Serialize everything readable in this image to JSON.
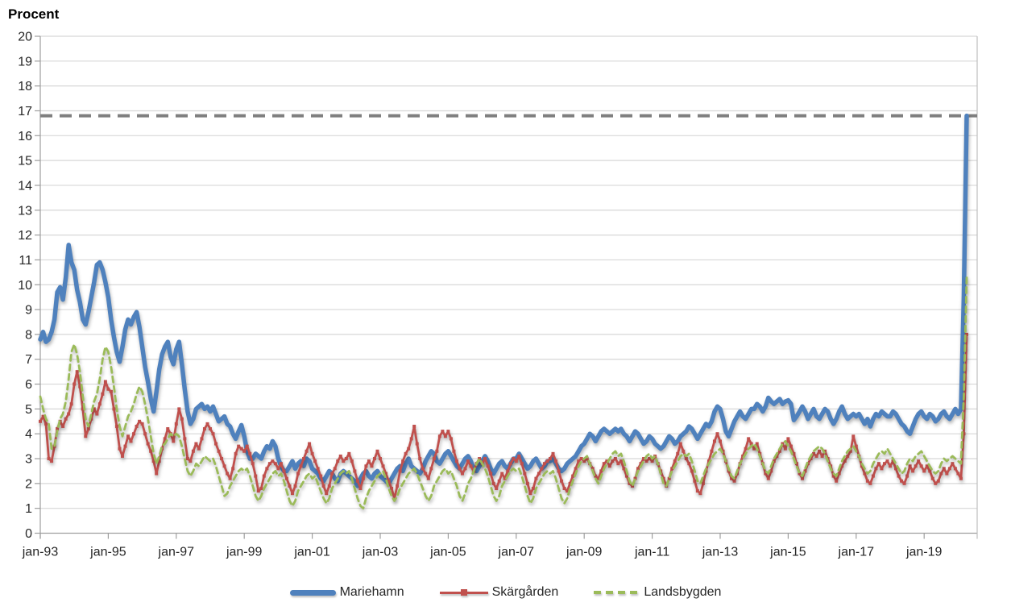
{
  "chart": {
    "y_axis_title": "Procent"
  },
  "chart_data": {
    "type": "line",
    "title": "Procent",
    "frequency": "monthly",
    "x_start": "jan-93",
    "x_end": "apr-20",
    "x_tick_labels": [
      "jan-93",
      "jan-95",
      "jan-97",
      "jan-99",
      "jan-01",
      "jan-03",
      "jan-05",
      "jan-07",
      "jan-09",
      "jan-11",
      "jan-13",
      "jan-15",
      "jan-17",
      "jan-19"
    ],
    "ylim": [
      0,
      20
    ],
    "y_tick_step": 1,
    "grid": "horizontal",
    "legend_position": "bottom",
    "reference_line": {
      "value": 16.8,
      "color": "#7F7F7F",
      "style": "dashed"
    },
    "axis_color": "#9E9E9E",
    "gridline_color": "#D7D7D7",
    "text_color": "#262626",
    "series": [
      {
        "name": "Mariehamn",
        "color": "#4F81BD",
        "line_style": "solid-thick",
        "values": [
          7.8,
          8.1,
          7.7,
          7.8,
          8.1,
          8.6,
          9.7,
          9.9,
          9.4,
          10.3,
          11.6,
          10.9,
          10.6,
          9.8,
          9.3,
          8.6,
          8.4,
          8.9,
          9.5,
          10.1,
          10.8,
          10.9,
          10.6,
          10.1,
          9.5,
          8.6,
          7.9,
          7.3,
          6.9,
          7.5,
          8.2,
          8.6,
          8.4,
          8.7,
          8.9,
          8.3,
          7.5,
          6.7,
          6.1,
          5.4,
          4.9,
          5.7,
          6.6,
          7.2,
          7.5,
          7.7,
          7.1,
          6.8,
          7.4,
          7.7,
          6.8,
          5.8,
          4.9,
          4.4,
          4.6,
          5.0,
          5.1,
          5.2,
          5.0,
          5.1,
          4.9,
          5.1,
          4.8,
          4.5,
          4.6,
          4.7,
          4.4,
          4.3,
          4.0,
          3.8,
          4.1,
          4.35,
          3.9,
          3.3,
          3.0,
          3.0,
          3.2,
          3.1,
          3.0,
          3.3,
          3.5,
          3.4,
          3.7,
          3.5,
          3.0,
          2.7,
          2.5,
          2.5,
          2.7,
          2.9,
          2.6,
          2.8,
          2.9,
          2.7,
          3.0,
          2.9,
          2.6,
          2.5,
          2.4,
          2.2,
          2.1,
          2.3,
          2.5,
          2.4,
          2.2,
          2.1,
          2.4,
          2.5,
          2.4,
          2.3,
          2.2,
          2.1,
          1.9,
          2.2,
          2.4,
          2.5,
          2.3,
          2.2,
          2.4,
          2.5,
          2.3,
          2.2,
          2.1,
          2.0,
          2.2,
          2.4,
          2.6,
          2.7,
          2.5,
          2.8,
          3.0,
          2.7,
          2.6,
          2.5,
          2.4,
          2.6,
          2.9,
          3.1,
          3.3,
          3.2,
          2.9,
          2.8,
          3.0,
          3.2,
          3.3,
          3.1,
          2.9,
          2.7,
          2.6,
          2.8,
          3.0,
          3.1,
          2.9,
          2.6,
          2.5,
          2.7,
          2.9,
          3.1,
          2.9,
          2.6,
          2.4,
          2.6,
          2.8,
          2.9,
          2.7,
          2.6,
          2.8,
          3.0,
          3.0,
          3.2,
          3.0,
          2.8,
          2.6,
          2.7,
          2.9,
          3.0,
          2.8,
          2.6,
          2.7,
          2.9,
          2.9,
          3.0,
          2.8,
          2.6,
          2.5,
          2.6,
          2.8,
          2.9,
          3.0,
          3.1,
          3.3,
          3.5,
          3.6,
          3.8,
          4.0,
          3.9,
          3.7,
          3.9,
          4.1,
          4.2,
          4.1,
          4.0,
          4.1,
          4.2,
          4.1,
          4.2,
          4.0,
          3.9,
          3.7,
          3.9,
          4.1,
          4.0,
          3.8,
          3.6,
          3.7,
          3.9,
          3.8,
          3.6,
          3.5,
          3.4,
          3.5,
          3.7,
          3.9,
          3.8,
          3.6,
          3.7,
          3.9,
          4.0,
          4.1,
          4.3,
          4.2,
          4.0,
          3.8,
          4.0,
          4.2,
          4.4,
          4.3,
          4.5,
          4.9,
          5.1,
          5.0,
          4.6,
          4.1,
          3.9,
          4.2,
          4.5,
          4.7,
          4.9,
          4.7,
          4.6,
          4.8,
          5.0,
          5.0,
          5.2,
          5.1,
          4.9,
          5.1,
          5.45,
          5.3,
          5.2,
          5.3,
          5.4,
          5.2,
          5.3,
          5.35,
          5.2,
          4.55,
          4.7,
          4.9,
          5.1,
          4.9,
          4.6,
          4.8,
          5.0,
          4.7,
          4.6,
          4.8,
          5.0,
          4.9,
          4.6,
          4.4,
          4.6,
          4.9,
          5.1,
          4.8,
          4.6,
          4.7,
          4.8,
          4.7,
          4.8,
          4.6,
          4.4,
          4.6,
          4.3,
          4.6,
          4.8,
          4.7,
          4.9,
          4.8,
          4.7,
          4.7,
          4.9,
          4.8,
          4.6,
          4.4,
          4.3,
          4.1,
          4.0,
          4.3,
          4.6,
          4.8,
          4.9,
          4.7,
          4.6,
          4.8,
          4.7,
          4.5,
          4.6,
          4.8,
          4.9,
          4.7,
          4.6,
          4.8,
          5.0,
          4.8,
          5.0,
          9.5,
          16.8
        ]
      },
      {
        "name": "Skärgården",
        "color": "#C0504D",
        "line_style": "solid-with-square-markers",
        "values": [
          4.5,
          4.7,
          4.4,
          3.0,
          2.9,
          3.5,
          4.2,
          4.5,
          4.3,
          4.6,
          4.8,
          5.2,
          6.0,
          6.5,
          5.9,
          5.0,
          3.9,
          4.2,
          4.6,
          5.0,
          4.8,
          5.2,
          5.6,
          6.1,
          5.8,
          5.7,
          5.0,
          4.3,
          3.4,
          3.1,
          3.5,
          3.9,
          3.7,
          4.0,
          4.3,
          4.5,
          4.4,
          4.0,
          3.6,
          3.3,
          2.9,
          2.4,
          2.9,
          3.4,
          3.8,
          4.2,
          4.0,
          3.7,
          4.4,
          5.0,
          4.6,
          3.8,
          3.0,
          2.9,
          3.3,
          3.6,
          3.4,
          3.8,
          4.2,
          4.4,
          4.2,
          4.0,
          3.6,
          3.3,
          3.0,
          2.7,
          2.4,
          2.2,
          2.6,
          3.2,
          3.5,
          3.4,
          3.3,
          3.5,
          3.2,
          2.8,
          2.3,
          1.7,
          1.8,
          2.3,
          2.6,
          2.8,
          2.9,
          2.8,
          2.6,
          2.8,
          2.5,
          2.2,
          1.9,
          1.6,
          1.9,
          2.4,
          2.7,
          3.0,
          3.3,
          3.6,
          3.2,
          2.9,
          2.6,
          2.3,
          1.9,
          1.6,
          1.9,
          2.4,
          2.6,
          2.9,
          3.1,
          2.9,
          3.0,
          3.2,
          2.9,
          2.5,
          2.1,
          1.8,
          2.2,
          2.7,
          2.9,
          2.7,
          3.0,
          3.3,
          3.0,
          2.7,
          2.4,
          2.1,
          1.8,
          1.4,
          1.9,
          2.5,
          2.9,
          3.2,
          3.4,
          3.8,
          4.3,
          3.6,
          3.0,
          2.6,
          2.4,
          2.2,
          2.6,
          3.0,
          3.3,
          3.9,
          4.1,
          3.9,
          4.1,
          3.8,
          3.3,
          2.9,
          2.6,
          2.4,
          2.6,
          2.9,
          2.7,
          2.5,
          2.8,
          3.0,
          2.8,
          3.0,
          2.7,
          2.4,
          2.0,
          1.8,
          2.1,
          2.4,
          2.2,
          2.5,
          2.8,
          3.0,
          2.9,
          3.1,
          2.8,
          2.4,
          2.0,
          1.6,
          1.8,
          2.2,
          2.4,
          2.6,
          2.8,
          2.9,
          3.0,
          3.2,
          2.9,
          2.5,
          2.1,
          1.8,
          1.7,
          2.0,
          2.3,
          2.6,
          2.9,
          3.0,
          2.9,
          3.0,
          2.8,
          2.6,
          2.3,
          2.2,
          2.5,
          2.8,
          2.9,
          2.7,
          2.9,
          3.0,
          2.8,
          2.9,
          2.6,
          2.3,
          2.0,
          1.9,
          2.2,
          2.6,
          2.8,
          3.0,
          2.9,
          3.0,
          2.9,
          3.1,
          2.8,
          2.5,
          2.2,
          1.9,
          2.2,
          2.6,
          2.9,
          3.2,
          3.6,
          3.3,
          3.0,
          2.8,
          2.5,
          2.1,
          1.7,
          1.6,
          2.0,
          2.5,
          2.9,
          3.3,
          3.7,
          4.0,
          3.7,
          3.3,
          2.9,
          2.5,
          2.2,
          2.1,
          2.4,
          2.8,
          3.1,
          3.4,
          3.8,
          3.6,
          3.4,
          3.6,
          3.2,
          2.8,
          2.4,
          2.2,
          2.5,
          2.9,
          3.1,
          3.3,
          3.6,
          3.4,
          3.8,
          3.5,
          3.2,
          2.8,
          2.4,
          2.2,
          2.5,
          2.8,
          3.0,
          3.2,
          3.1,
          3.3,
          3.1,
          3.3,
          3.0,
          2.7,
          2.3,
          2.1,
          2.4,
          2.7,
          2.9,
          3.1,
          3.3,
          3.9,
          3.5,
          3.1,
          2.7,
          2.4,
          2.1,
          2.0,
          2.3,
          2.6,
          2.8,
          2.6,
          2.8,
          2.9,
          2.7,
          2.9,
          2.6,
          2.3,
          2.1,
          2.0,
          2.3,
          2.7,
          2.5,
          2.7,
          2.9,
          2.7,
          2.5,
          2.7,
          2.5,
          2.2,
          2.0,
          2.1,
          2.4,
          2.6,
          2.4,
          2.6,
          2.8,
          2.6,
          2.4,
          2.2,
          4.0,
          8.0
        ]
      },
      {
        "name": "Landsbygden",
        "color": "#9BBB59",
        "line_style": "dashed",
        "values": [
          5.5,
          5.0,
          4.6,
          4.4,
          3.4,
          3.5,
          4.1,
          4.6,
          4.8,
          5.3,
          6.2,
          7.3,
          7.6,
          7.2,
          6.5,
          5.5,
          4.6,
          4.3,
          4.8,
          5.3,
          5.6,
          6.2,
          7.0,
          7.5,
          7.3,
          6.7,
          5.9,
          5.0,
          4.3,
          3.9,
          4.3,
          4.7,
          4.9,
          5.2,
          5.6,
          5.9,
          5.7,
          5.2,
          4.6,
          3.9,
          3.2,
          2.8,
          3.1,
          3.5,
          3.6,
          3.8,
          4.0,
          3.9,
          4.0,
          3.9,
          3.5,
          3.0,
          2.5,
          2.3,
          2.5,
          2.8,
          2.7,
          2.9,
          3.1,
          3.0,
          2.9,
          3.0,
          2.7,
          2.3,
          1.9,
          1.5,
          1.6,
          1.9,
          2.1,
          2.3,
          2.5,
          2.6,
          2.5,
          2.6,
          2.3,
          1.9,
          1.5,
          1.3,
          1.5,
          1.8,
          2.0,
          2.2,
          2.4,
          2.5,
          2.3,
          2.4,
          2.1,
          1.7,
          1.3,
          1.1,
          1.3,
          1.7,
          1.9,
          2.1,
          2.3,
          2.4,
          2.2,
          2.3,
          2.0,
          1.7,
          1.4,
          1.2,
          1.4,
          1.8,
          2.0,
          2.2,
          2.4,
          2.5,
          2.4,
          2.5,
          2.2,
          1.8,
          1.4,
          1.1,
          1.0,
          1.4,
          1.7,
          1.9,
          2.1,
          2.3,
          2.4,
          2.5,
          2.2,
          1.8,
          1.5,
          1.3,
          1.5,
          1.8,
          2.0,
          2.2,
          2.4,
          2.5,
          2.6,
          2.4,
          2.1,
          1.8,
          1.5,
          1.3,
          1.5,
          1.9,
          2.1,
          2.3,
          2.5,
          2.6,
          2.4,
          2.5,
          2.2,
          1.9,
          1.5,
          1.3,
          1.6,
          2.0,
          2.2,
          2.5,
          2.8,
          3.0,
          2.8,
          2.6,
          2.3,
          1.9,
          1.5,
          1.3,
          1.5,
          1.9,
          2.1,
          2.3,
          2.5,
          2.6,
          2.5,
          2.6,
          2.3,
          1.9,
          1.5,
          1.2,
          1.4,
          1.8,
          2.0,
          2.2,
          2.4,
          2.5,
          2.4,
          2.5,
          2.2,
          1.8,
          1.4,
          1.2,
          1.4,
          1.8,
          2.1,
          2.4,
          2.7,
          2.9,
          3.0,
          3.1,
          2.8,
          2.5,
          2.2,
          2.0,
          2.3,
          2.6,
          2.8,
          3.0,
          3.2,
          3.3,
          3.1,
          3.2,
          2.9,
          2.5,
          2.1,
          1.9,
          2.2,
          2.5,
          2.7,
          2.9,
          3.1,
          3.2,
          3.0,
          3.1,
          2.8,
          2.4,
          2.0,
          1.9,
          2.2,
          2.5,
          2.7,
          2.9,
          3.1,
          3.2,
          3.1,
          3.2,
          2.9,
          2.5,
          2.1,
          2.0,
          2.3,
          2.6,
          2.8,
          3.0,
          3.2,
          3.3,
          3.4,
          3.2,
          2.9,
          2.6,
          2.3,
          2.2,
          2.5,
          2.8,
          3.0,
          3.2,
          3.4,
          3.5,
          3.6,
          3.4,
          3.1,
          2.8,
          2.5,
          2.4,
          2.7,
          3.0,
          3.2,
          3.4,
          3.6,
          3.7,
          3.5,
          3.3,
          3.0,
          2.7,
          2.4,
          2.3,
          2.6,
          2.9,
          3.1,
          3.3,
          3.4,
          3.5,
          3.4,
          3.2,
          2.9,
          2.6,
          2.4,
          2.3,
          2.6,
          2.9,
          3.1,
          3.3,
          3.4,
          3.5,
          3.3,
          3.1,
          2.8,
          2.6,
          2.4,
          2.5,
          2.8,
          3.0,
          3.2,
          3.3,
          3.2,
          3.4,
          3.2,
          3.0,
          2.8,
          2.6,
          2.4,
          2.5,
          2.8,
          3.0,
          2.9,
          3.1,
          3.2,
          3.3,
          3.1,
          2.9,
          2.7,
          2.5,
          2.4,
          2.5,
          2.8,
          3.0,
          2.9,
          3.0,
          3.1,
          3.0,
          2.9,
          2.8,
          5.5,
          10.3
        ]
      }
    ]
  }
}
